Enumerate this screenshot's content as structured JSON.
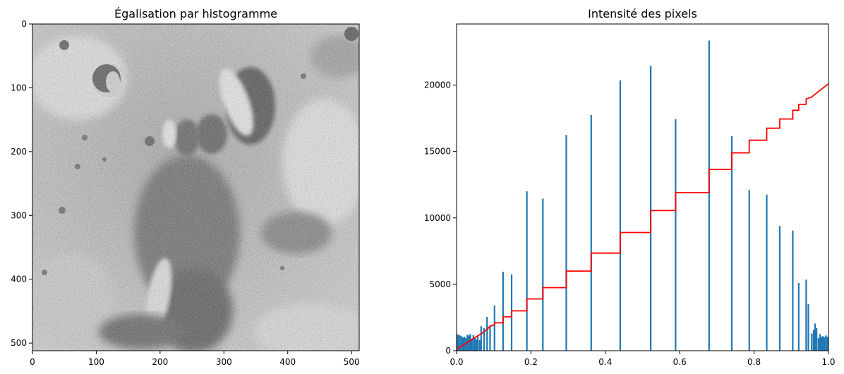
{
  "chart_data": [
    {
      "type": "image",
      "title": "Égalisation par histogramme",
      "colormap": "gray",
      "image_size": [
        512,
        512
      ],
      "xlim": [
        0,
        512
      ],
      "ylim": [
        512,
        0
      ],
      "xticks": [
        0,
        100,
        200,
        300,
        400,
        500
      ],
      "yticks": [
        0,
        100,
        200,
        300,
        400,
        500
      ],
      "content": "equalized grayscale photograph of a cratered lunar surface"
    },
    {
      "type": "bar",
      "title": "Intensité des pixels",
      "xlabel": "",
      "ylabel": "",
      "xlim": [
        0.0,
        1.0
      ],
      "ylim": [
        0,
        24600
      ],
      "grid": false,
      "bar_color": "#1f77b4",
      "xticks": [
        0.0,
        0.2,
        0.4,
        0.6,
        0.8,
        1.0
      ],
      "yticks": [
        0,
        5000,
        10000,
        15000,
        20000
      ],
      "bars": [
        {
          "x": 0.001,
          "y": 1250
        },
        {
          "x": 0.005,
          "y": 1200
        },
        {
          "x": 0.009,
          "y": 1150
        },
        {
          "x": 0.013,
          "y": 1100
        },
        {
          "x": 0.017,
          "y": 1000
        },
        {
          "x": 0.021,
          "y": 1050
        },
        {
          "x": 0.025,
          "y": 950
        },
        {
          "x": 0.029,
          "y": 1200
        },
        {
          "x": 0.033,
          "y": 1150
        },
        {
          "x": 0.037,
          "y": 1250
        },
        {
          "x": 0.041,
          "y": 900
        },
        {
          "x": 0.045,
          "y": 1200
        },
        {
          "x": 0.049,
          "y": 1000
        },
        {
          "x": 0.053,
          "y": 850
        },
        {
          "x": 0.057,
          "y": 1100
        },
        {
          "x": 0.062,
          "y": 800
        },
        {
          "x": 0.066,
          "y": 1850
        },
        {
          "x": 0.074,
          "y": 1700
        },
        {
          "x": 0.082,
          "y": 2550
        },
        {
          "x": 0.09,
          "y": 1900
        },
        {
          "x": 0.102,
          "y": 3400
        },
        {
          "x": 0.125,
          "y": 5950
        },
        {
          "x": 0.148,
          "y": 5750
        },
        {
          "x": 0.189,
          "y": 12000
        },
        {
          "x": 0.232,
          "y": 11450
        },
        {
          "x": 0.295,
          "y": 16250
        },
        {
          "x": 0.362,
          "y": 17750
        },
        {
          "x": 0.44,
          "y": 20350
        },
        {
          "x": 0.522,
          "y": 21450
        },
        {
          "x": 0.589,
          "y": 17450
        },
        {
          "x": 0.679,
          "y": 23350
        },
        {
          "x": 0.74,
          "y": 16150
        },
        {
          "x": 0.787,
          "y": 12100
        },
        {
          "x": 0.834,
          "y": 11750
        },
        {
          "x": 0.869,
          "y": 9400
        },
        {
          "x": 0.904,
          "y": 9050
        },
        {
          "x": 0.92,
          "y": 5100
        },
        {
          "x": 0.94,
          "y": 5350
        },
        {
          "x": 0.946,
          "y": 3500
        },
        {
          "x": 0.955,
          "y": 1300
        },
        {
          "x": 0.96,
          "y": 1550
        },
        {
          "x": 0.964,
          "y": 2050
        },
        {
          "x": 0.968,
          "y": 1700
        },
        {
          "x": 0.973,
          "y": 950
        },
        {
          "x": 0.977,
          "y": 1250
        },
        {
          "x": 0.981,
          "y": 1050
        },
        {
          "x": 0.985,
          "y": 1100
        },
        {
          "x": 0.989,
          "y": 1000
        },
        {
          "x": 0.993,
          "y": 1150
        },
        {
          "x": 0.997,
          "y": 1050
        }
      ],
      "cdf_line": {
        "color": "#ff0000",
        "points": [
          [
            0.0,
            100
          ],
          [
            0.03,
            650
          ],
          [
            0.05,
            1000
          ],
          [
            0.07,
            1350
          ],
          [
            0.082,
            1600
          ],
          [
            0.09,
            1850
          ],
          [
            0.102,
            1950
          ],
          [
            0.102,
            2100
          ],
          [
            0.125,
            2100
          ],
          [
            0.125,
            2550
          ],
          [
            0.148,
            2550
          ],
          [
            0.148,
            3000
          ],
          [
            0.189,
            3000
          ],
          [
            0.189,
            3900
          ],
          [
            0.232,
            3900
          ],
          [
            0.232,
            4750
          ],
          [
            0.295,
            4750
          ],
          [
            0.295,
            6000
          ],
          [
            0.362,
            6000
          ],
          [
            0.362,
            7350
          ],
          [
            0.44,
            7350
          ],
          [
            0.44,
            8900
          ],
          [
            0.522,
            8900
          ],
          [
            0.522,
            10550
          ],
          [
            0.589,
            10550
          ],
          [
            0.589,
            11900
          ],
          [
            0.679,
            11900
          ],
          [
            0.679,
            13650
          ],
          [
            0.74,
            13650
          ],
          [
            0.74,
            14900
          ],
          [
            0.787,
            14900
          ],
          [
            0.787,
            15850
          ],
          [
            0.834,
            15850
          ],
          [
            0.834,
            16750
          ],
          [
            0.869,
            16750
          ],
          [
            0.869,
            17450
          ],
          [
            0.904,
            17450
          ],
          [
            0.904,
            18100
          ],
          [
            0.92,
            18100
          ],
          [
            0.92,
            18550
          ],
          [
            0.94,
            18550
          ],
          [
            0.94,
            18950
          ],
          [
            0.955,
            19100
          ],
          [
            0.97,
            19450
          ],
          [
            1.0,
            20100
          ]
        ]
      }
    }
  ]
}
